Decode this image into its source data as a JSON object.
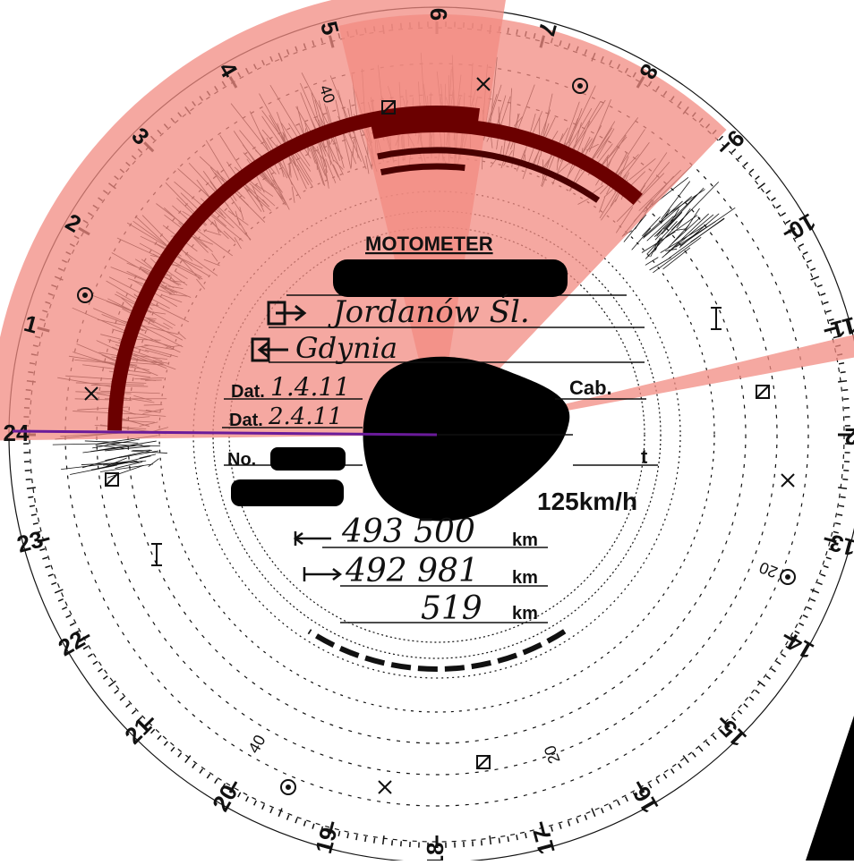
{
  "brand": "MOTOMETER",
  "hour_labels": [
    "3",
    "4",
    "5",
    "6",
    "7",
    "8",
    "9",
    "10",
    "11",
    "12",
    "13",
    "14",
    "15",
    "16",
    "17",
    "18",
    "19",
    "20",
    "21",
    "22",
    "23",
    "24",
    "1",
    "2"
  ],
  "speed_labels": [
    "40",
    "20",
    "40",
    "20"
  ],
  "form": {
    "departure_place": "Jordanów Śl.",
    "arrival_place": "Gdynia",
    "date_start_label": "Dat.",
    "date_start": "1.4.11",
    "date_end_label": "Dat.",
    "date_end": "2.4.11",
    "number_label": "No.",
    "cab_label": "Cab.",
    "tonnage_label": "t",
    "max_speed": "125km/h"
  },
  "odometer": {
    "end_km": "493 500",
    "start_km": "492 981",
    "distance_km": "519",
    "unit": "km"
  },
  "overlay": {
    "color": "#f28b82",
    "sector_a_span": "7 hours",
    "sector_b_span": "3 hours"
  }
}
